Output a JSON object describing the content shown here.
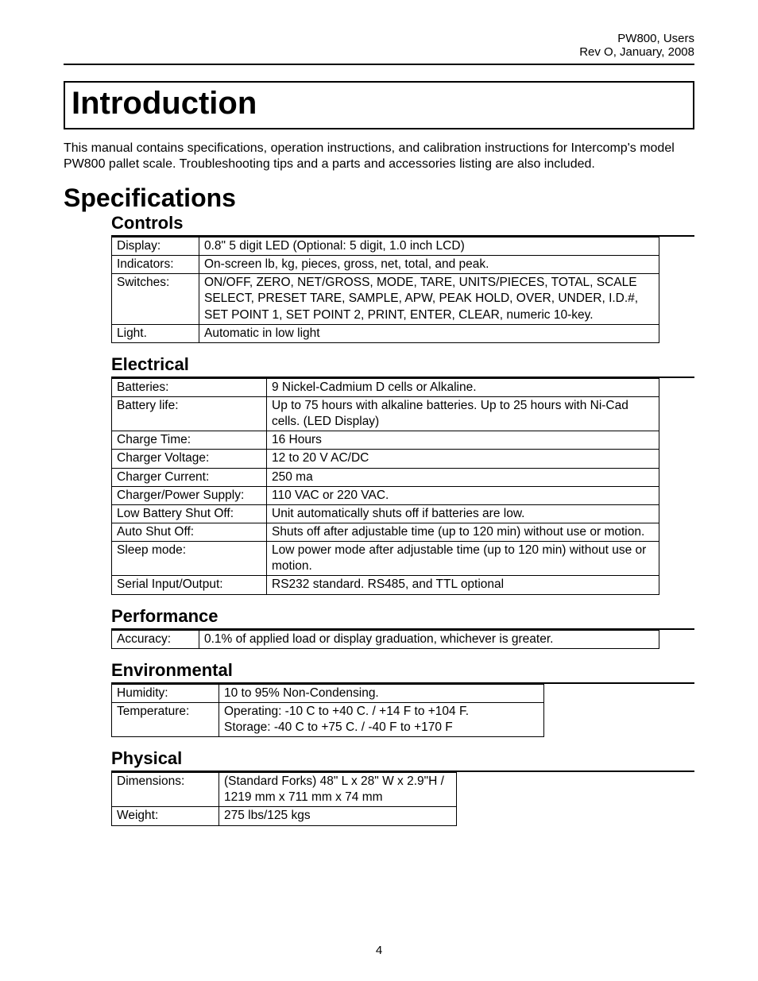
{
  "header": {
    "line1": "PW800, Users",
    "line2": "Rev O, January, 2008"
  },
  "title": "Introduction",
  "intro_paragraph": "This manual contains specifications, operation instructions, and calibration instructions for Intercomp's model PW800 pallet scale.  Troubleshooting tips and a parts and accessories listing are also included.",
  "spec_heading": "Specifications",
  "sections": {
    "controls": {
      "title": "Controls",
      "rows": [
        [
          "Display:",
          "0.8\" 5 digit LED (Optional: 5 digit, 1.0 inch LCD)"
        ],
        [
          "Indicators:",
          "On-screen lb, kg, pieces, gross, net, total, and peak."
        ],
        [
          "Switches:",
          "ON/OFF, ZERO, NET/GROSS, MODE, TARE, UNITS/PIECES, TOTAL, SCALE SELECT, PRESET TARE, SAMPLE, APW, PEAK HOLD, OVER, UNDER, I.D.#, SET POINT 1, SET POINT 2, PRINT, ENTER, CLEAR, numeric 10-key."
        ],
        [
          "Light.",
          "Automatic in low light"
        ]
      ]
    },
    "electrical": {
      "title": "Electrical",
      "rows": [
        [
          "Batteries:",
          "9 Nickel-Cadmium D cells or Alkaline."
        ],
        [
          "Battery life:",
          "Up to 75 hours with alkaline batteries.  Up to 25 hours with Ni-Cad cells. (LED Display)"
        ],
        [
          "Charge Time:",
          "16 Hours"
        ],
        [
          "Charger Voltage:",
          "12 to 20 V AC/DC"
        ],
        [
          "Charger Current:",
          "250 ma"
        ],
        [
          "Charger/Power Supply:",
          "110 VAC or 220 VAC."
        ],
        [
          "Low Battery Shut Off:",
          "Unit automatically shuts off if batteries are low."
        ],
        [
          "Auto Shut Off:",
          "Shuts off after adjustable time (up to 120 min) without use or motion."
        ],
        [
          "Sleep mode:",
          "Low power mode after adjustable time (up to 120 min) without use or motion."
        ],
        [
          "Serial Input/Output:",
          "RS232 standard.  RS485, and TTL optional"
        ]
      ]
    },
    "performance": {
      "title": "Performance",
      "rows": [
        [
          "Accuracy:",
          "  0.1% of applied load or    display graduation, whichever is greater."
        ]
      ]
    },
    "environmental": {
      "title": "Environmental",
      "rows": [
        [
          "Humidity:",
          "10 to 95% Non-Condensing."
        ],
        [
          "Temperature:",
          "Operating: -10 C to +40 C. /  +14 F to +104 F.\nStorage: -40 C to +75 C. / -40 F to +170 F"
        ]
      ]
    },
    "physical": {
      "title": "Physical",
      "rows": [
        [
          "Dimensions:",
          "(Standard Forks) 48\" L x 28\" W x 2.9\"H / 1219 mm x 711 mm x 74 mm"
        ],
        [
          "Weight:",
          "275 lbs/125 kgs"
        ]
      ]
    }
  },
  "page_number": "4"
}
